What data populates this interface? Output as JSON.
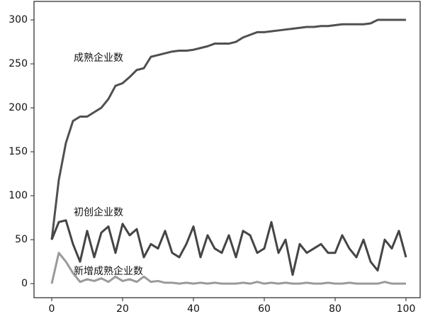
{
  "chart_data": {
    "type": "line",
    "x": [
      0,
      2,
      4,
      6,
      8,
      10,
      12,
      14,
      16,
      18,
      20,
      22,
      24,
      26,
      28,
      30,
      32,
      34,
      36,
      38,
      40,
      42,
      44,
      46,
      48,
      50,
      52,
      54,
      56,
      58,
      60,
      62,
      64,
      66,
      68,
      70,
      72,
      74,
      76,
      78,
      80,
      82,
      84,
      86,
      88,
      90,
      92,
      94,
      96,
      98,
      100
    ],
    "series": [
      {
        "name": "成熟企业数",
        "color": "#505050",
        "values": [
          50,
          118,
          160,
          185,
          190,
          190,
          195,
          200,
          210,
          225,
          228,
          235,
          243,
          245,
          258,
          260,
          262,
          264,
          265,
          265,
          266,
          268,
          270,
          273,
          273,
          273,
          275,
          280,
          283,
          286,
          286,
          287,
          288,
          289,
          290,
          291,
          292,
          292,
          293,
          293,
          294,
          295,
          295,
          295,
          295,
          296,
          300,
          300,
          300,
          300,
          300
        ]
      },
      {
        "name": "初创企业数",
        "color": "#454545",
        "values": [
          50,
          70,
          72,
          45,
          25,
          60,
          30,
          58,
          65,
          35,
          68,
          55,
          62,
          30,
          45,
          40,
          60,
          35,
          30,
          45,
          65,
          30,
          55,
          40,
          35,
          55,
          30,
          60,
          55,
          35,
          40,
          70,
          35,
          50,
          10,
          45,
          35,
          40,
          45,
          35,
          35,
          55,
          40,
          30,
          50,
          25,
          15,
          50,
          40,
          60,
          30
        ]
      },
      {
        "name": "新增成熟企业数",
        "color": "#9a9a9a",
        "values": [
          0,
          35,
          25,
          12,
          2,
          5,
          3,
          6,
          2,
          8,
          3,
          5,
          2,
          8,
          2,
          3,
          1,
          1,
          0,
          1,
          0,
          1,
          0,
          1,
          0,
          0,
          0,
          1,
          0,
          2,
          0,
          1,
          0,
          1,
          0,
          0,
          1,
          0,
          0,
          1,
          0,
          0,
          1,
          0,
          0,
          0,
          0,
          2,
          0,
          0,
          0
        ]
      }
    ],
    "xlim": [
      -5,
      104
    ],
    "ylim": [
      -16,
      321
    ],
    "xticks": [
      0,
      20,
      40,
      60,
      80,
      100
    ],
    "yticks": [
      0,
      50,
      100,
      150,
      200,
      250,
      300
    ]
  }
}
